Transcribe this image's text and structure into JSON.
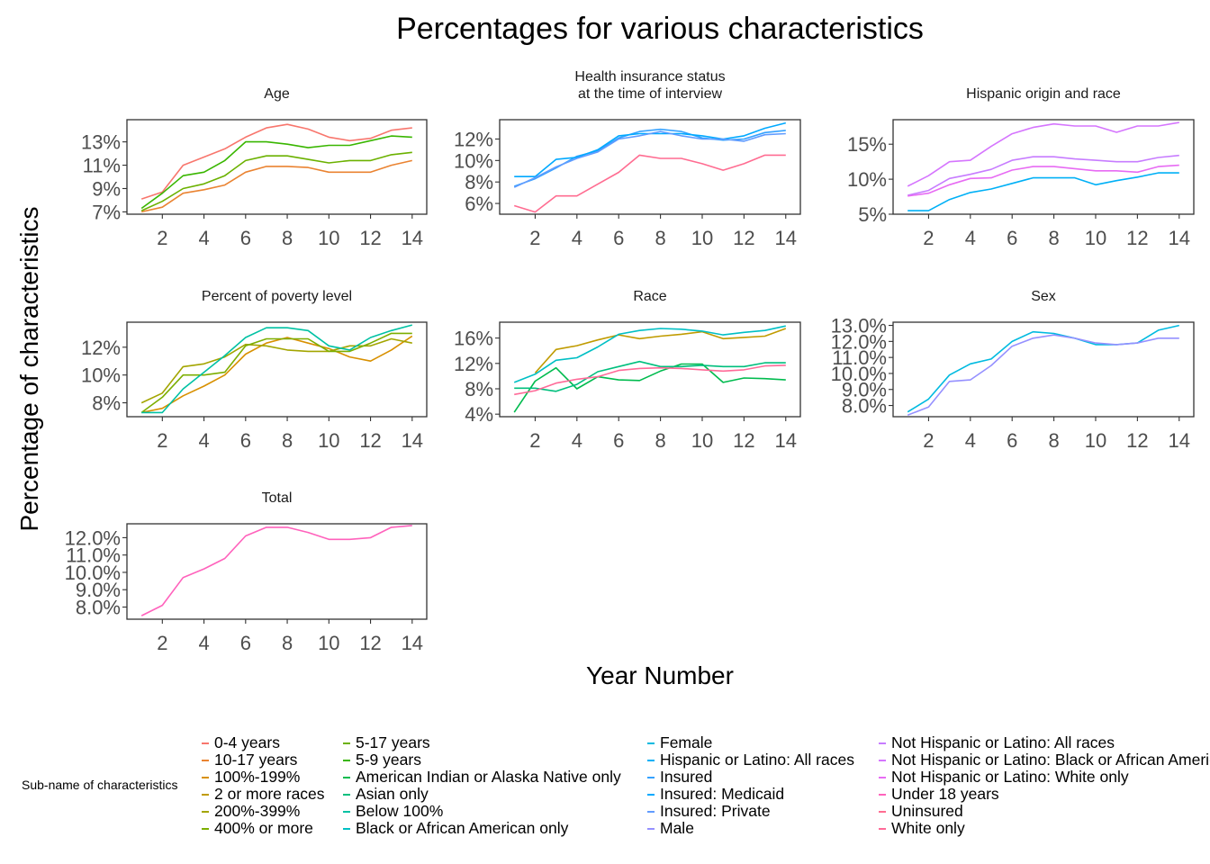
{
  "figure": {
    "title": "Percentages for various characteristics",
    "xlabel": "Year Number",
    "ylabel": "Percentage of characteristics"
  },
  "legend": {
    "title": "Sub-name of characteristics",
    "columns": [
      [
        {
          "label": "0-4 years",
          "color": "#F8766D"
        },
        {
          "label": "10-17 years",
          "color": "#EA8331"
        },
        {
          "label": "100%-199%",
          "color": "#D89000"
        },
        {
          "label": "2 or more races",
          "color": "#C09B00"
        },
        {
          "label": "200%-399%",
          "color": "#A3A500"
        },
        {
          "label": "400% or more",
          "color": "#7CAE00"
        }
      ],
      [
        {
          "label": "5-17 years",
          "color": "#6BB100"
        },
        {
          "label": "5-9 years",
          "color": "#39B600"
        },
        {
          "label": "American Indian or Alaska Native only",
          "color": "#00BB4E"
        },
        {
          "label": "Asian only",
          "color": "#00BF7D"
        },
        {
          "label": "Below 100%",
          "color": "#00C1A3"
        },
        {
          "label": "Black or African American only",
          "color": "#00BFC4"
        }
      ],
      [
        {
          "label": "Female",
          "color": "#00BAE0"
        },
        {
          "label": "Hispanic or Latino: All races",
          "color": "#00B0F6"
        },
        {
          "label": "Insured",
          "color": "#35A2FF"
        },
        {
          "label": "Insured: Medicaid",
          "color": "#00A9FF"
        },
        {
          "label": "Insured: Private",
          "color": "#619CFF"
        },
        {
          "label": "Male",
          "color": "#9590FF"
        }
      ],
      [
        {
          "label": "Not Hispanic or Latino: All races",
          "color": "#C77CFF"
        },
        {
          "label": "Not Hispanic or Latino: Black or African American only",
          "color": "#D575FE"
        },
        {
          "label": "Not Hispanic or Latino: White only",
          "color": "#E76BF3"
        },
        {
          "label": "Under 18 years",
          "color": "#FF62BC"
        },
        {
          "label": "Uninsured",
          "color": "#FF6C91"
        },
        {
          "label": "White only",
          "color": "#FF6A98"
        }
      ]
    ]
  },
  "chart_data": [
    {
      "type": "line",
      "title": "Age",
      "x": [
        1,
        2,
        3,
        4,
        5,
        6,
        7,
        8,
        9,
        10,
        11,
        12,
        13,
        14
      ],
      "xlim": [
        0.3,
        14.7
      ],
      "xticks": [
        2,
        4,
        6,
        8,
        10,
        12,
        14
      ],
      "ylim": [
        6.8,
        14.9
      ],
      "yticks": [
        7,
        9,
        11,
        13
      ],
      "ytick_labels": [
        "7%",
        "9%",
        "11%",
        "13%"
      ],
      "series": [
        {
          "name": "0-4 years",
          "color": "#F8766D",
          "values": [
            8.1,
            8.7,
            11.0,
            11.7,
            12.4,
            13.4,
            14.2,
            14.5,
            14.1,
            13.4,
            13.1,
            13.3,
            14.0,
            14.2
          ]
        },
        {
          "name": "10-17 years",
          "color": "#EA8331",
          "values": [
            7.0,
            7.4,
            8.6,
            8.9,
            9.3,
            10.4,
            10.9,
            10.9,
            10.8,
            10.4,
            10.4,
            10.4,
            11.0,
            11.4
          ]
        },
        {
          "name": "5-17 years",
          "color": "#6BB100",
          "values": [
            7.1,
            7.9,
            9.0,
            9.4,
            10.1,
            11.4,
            11.8,
            11.8,
            11.5,
            11.2,
            11.4,
            11.4,
            11.9,
            12.1
          ]
        },
        {
          "name": "5-9 years",
          "color": "#39B600",
          "values": [
            7.3,
            8.6,
            10.1,
            10.4,
            11.4,
            13.0,
            13.0,
            12.8,
            12.5,
            12.7,
            12.7,
            13.1,
            13.5,
            13.4
          ]
        }
      ]
    },
    {
      "type": "line",
      "title": "Health insurance status\nat the time of interview",
      "x": [
        1,
        2,
        3,
        4,
        5,
        6,
        7,
        8,
        9,
        10,
        11,
        12,
        13,
        14
      ],
      "xlim": [
        0.3,
        14.7
      ],
      "xticks": [
        2,
        4,
        6,
        8,
        10,
        12,
        14
      ],
      "ylim": [
        5.0,
        13.8
      ],
      "yticks": [
        6,
        8,
        10,
        12
      ],
      "ytick_labels": [
        "6%",
        "8%",
        "10%",
        "12%"
      ],
      "series": [
        {
          "name": "Uninsured",
          "color": "#FF6C91",
          "values": [
            5.8,
            5.2,
            6.7,
            6.7,
            7.8,
            8.9,
            10.5,
            10.2,
            10.2,
            9.7,
            9.1,
            9.7,
            10.5,
            10.5
          ]
        },
        {
          "name": "Insured",
          "color": "#35A2FF",
          "values": [
            7.6,
            8.3,
            9.3,
            10.4,
            10.9,
            12.1,
            12.7,
            12.9,
            12.7,
            12.1,
            11.9,
            12.0,
            12.6,
            12.8
          ]
        },
        {
          "name": "Insured: Medicaid",
          "color": "#00A9FF",
          "values": [
            8.5,
            8.5,
            10.1,
            10.3,
            11.0,
            12.3,
            12.5,
            12.5,
            12.5,
            12.3,
            12.0,
            12.3,
            13.0,
            13.5
          ]
        },
        {
          "name": "Insured: Private",
          "color": "#619CFF",
          "values": [
            7.5,
            8.4,
            9.4,
            10.2,
            10.8,
            12.0,
            12.3,
            12.7,
            12.3,
            12.0,
            12.0,
            11.8,
            12.4,
            12.5
          ]
        }
      ]
    },
    {
      "type": "line",
      "title": "Hispanic origin and race",
      "x": [
        1,
        2,
        3,
        4,
        5,
        6,
        7,
        8,
        9,
        10,
        11,
        12,
        13,
        14
      ],
      "xlim": [
        0.3,
        14.7
      ],
      "xticks": [
        2,
        4,
        6,
        8,
        10,
        12,
        14
      ],
      "ylim": [
        5.0,
        18.5
      ],
      "yticks": [
        5,
        10,
        15
      ],
      "ytick_labels": [
        "5%",
        "10%",
        "15%"
      ],
      "series": [
        {
          "name": "Hispanic or Latino: All races",
          "color": "#00B0F6",
          "values": [
            5.5,
            5.5,
            7.1,
            8.1,
            8.6,
            9.4,
            10.2,
            10.2,
            10.2,
            9.2,
            9.8,
            10.3,
            10.9,
            10.9
          ]
        },
        {
          "name": "Not Hispanic or Latino: All races",
          "color": "#C77CFF",
          "values": [
            7.7,
            8.4,
            10.1,
            10.7,
            11.4,
            12.7,
            13.2,
            13.2,
            12.9,
            12.7,
            12.5,
            12.5,
            13.1,
            13.4
          ]
        },
        {
          "name": "Not Hispanic or Latino: Black or African American only",
          "color": "#D575FE",
          "values": [
            9.0,
            10.5,
            12.5,
            12.7,
            14.7,
            16.5,
            17.4,
            17.9,
            17.6,
            17.6,
            16.7,
            17.6,
            17.6,
            18.1
          ]
        },
        {
          "name": "Not Hispanic or Latino: White only",
          "color": "#E76BF3",
          "values": [
            7.6,
            8.0,
            9.2,
            10.1,
            10.2,
            11.3,
            11.8,
            11.8,
            11.5,
            11.2,
            11.2,
            11.0,
            11.8,
            12.0
          ]
        }
      ]
    },
    {
      "type": "line",
      "title": "Percent of poverty level",
      "x": [
        1,
        2,
        3,
        4,
        5,
        6,
        7,
        8,
        9,
        10,
        11,
        12,
        13,
        14
      ],
      "xlim": [
        0.3,
        14.7
      ],
      "xticks": [
        2,
        4,
        6,
        8,
        10,
        12,
        14
      ],
      "ylim": [
        7.0,
        13.8
      ],
      "yticks": [
        8,
        10,
        12
      ],
      "ytick_labels": [
        "8%",
        "10%",
        "12%"
      ],
      "series": [
        {
          "name": "100%-199%",
          "color": "#D89000",
          "values": [
            7.3,
            7.6,
            8.5,
            9.2,
            10.0,
            11.5,
            12.3,
            12.7,
            12.3,
            11.9,
            11.3,
            11.0,
            11.8,
            12.8
          ]
        },
        {
          "name": "200%-399%",
          "color": "#A3A500",
          "values": [
            8.0,
            8.7,
            10.6,
            10.8,
            11.3,
            12.2,
            12.1,
            11.8,
            11.7,
            11.7,
            12.1,
            12.1,
            12.6,
            12.3
          ]
        },
        {
          "name": "400% or more",
          "color": "#7CAE00",
          "values": [
            7.3,
            8.4,
            10.0,
            10.0,
            10.2,
            12.1,
            12.6,
            12.6,
            12.6,
            11.7,
            11.7,
            12.3,
            13.0,
            13.0
          ]
        },
        {
          "name": "Below 100%",
          "color": "#00C1A3",
          "values": [
            7.3,
            7.3,
            9.0,
            10.2,
            11.4,
            12.7,
            13.4,
            13.4,
            13.2,
            12.1,
            11.8,
            12.7,
            13.2,
            13.6
          ]
        }
      ]
    },
    {
      "type": "line",
      "title": "Race",
      "x": [
        1,
        2,
        3,
        4,
        5,
        6,
        7,
        8,
        9,
        10,
        11,
        12,
        13,
        14
      ],
      "xlim": [
        0.3,
        14.7
      ],
      "xticks": [
        2,
        4,
        6,
        8,
        10,
        12,
        14
      ],
      "ylim": [
        3.6,
        18.5
      ],
      "yticks": [
        4,
        8,
        12,
        16
      ],
      "ytick_labels": [
        "4%",
        "8%",
        "12%",
        "16%"
      ],
      "series": [
        {
          "name": "2 or more races",
          "color": "#C09B00",
          "values": [
            null,
            10.5,
            14.2,
            14.8,
            15.7,
            16.5,
            15.9,
            16.3,
            16.6,
            17.0,
            15.9,
            16.1,
            16.3,
            17.5
          ]
        },
        {
          "name": "American Indian or Alaska Native only",
          "color": "#00BB4E",
          "values": [
            4.3,
            9.2,
            11.3,
            8.0,
            9.9,
            9.4,
            9.3,
            10.8,
            11.9,
            11.9,
            9.0,
            9.7,
            9.6,
            9.4
          ]
        },
        {
          "name": "Asian only",
          "color": "#00BF7D",
          "values": [
            8.1,
            8.1,
            7.6,
            8.7,
            10.7,
            11.5,
            12.3,
            11.5,
            11.5,
            11.7,
            11.5,
            11.5,
            12.1,
            12.1
          ]
        },
        {
          "name": "Black or African American only",
          "color": "#00BFC4",
          "values": [
            9.0,
            10.3,
            12.5,
            12.9,
            14.6,
            16.6,
            17.2,
            17.5,
            17.4,
            17.1,
            16.5,
            16.9,
            17.2,
            17.9
          ]
        },
        {
          "name": "White only",
          "color": "#FF6A98",
          "values": [
            7.1,
            7.7,
            8.9,
            9.5,
            9.9,
            10.9,
            11.2,
            11.3,
            11.2,
            11.0,
            10.8,
            11.0,
            11.6,
            11.7
          ]
        }
      ]
    },
    {
      "type": "line",
      "title": "Sex",
      "x": [
        1,
        2,
        3,
        4,
        5,
        6,
        7,
        8,
        9,
        10,
        11,
        12,
        13,
        14
      ],
      "xlim": [
        0.3,
        14.7
      ],
      "xticks": [
        2,
        4,
        6,
        8,
        10,
        12,
        14
      ],
      "ylim": [
        7.3,
        13.2
      ],
      "yticks": [
        8,
        9,
        10,
        11,
        12,
        13
      ],
      "ytick_labels": [
        "8.0%",
        "9.0%",
        "10.0%",
        "11.0%",
        "12.0%",
        "13.0%"
      ],
      "series": [
        {
          "name": "Female",
          "color": "#00BAE0",
          "values": [
            7.6,
            8.4,
            9.9,
            10.6,
            10.9,
            12.0,
            12.6,
            12.5,
            12.2,
            11.8,
            11.8,
            11.9,
            12.7,
            13.0
          ]
        },
        {
          "name": "Male",
          "color": "#9590FF",
          "values": [
            7.4,
            7.9,
            9.5,
            9.6,
            10.5,
            11.7,
            12.2,
            12.4,
            12.2,
            11.9,
            11.8,
            11.9,
            12.2,
            12.2
          ]
        }
      ]
    },
    {
      "type": "line",
      "title": "Total",
      "x": [
        1,
        2,
        3,
        4,
        5,
        6,
        7,
        8,
        9,
        10,
        11,
        12,
        13,
        14
      ],
      "xlim": [
        0.3,
        14.7
      ],
      "xticks": [
        2,
        4,
        6,
        8,
        10,
        12,
        14
      ],
      "ylim": [
        7.3,
        12.8
      ],
      "yticks": [
        8,
        9,
        10,
        11,
        12
      ],
      "ytick_labels": [
        "8.0%",
        "9.0%",
        "10.0%",
        "11.0%",
        "12.0%"
      ],
      "series": [
        {
          "name": "Under 18 years",
          "color": "#FF62BC",
          "values": [
            7.5,
            8.1,
            9.7,
            10.2,
            10.8,
            12.1,
            12.6,
            12.6,
            12.3,
            11.9,
            11.9,
            12.0,
            12.6,
            12.7
          ]
        }
      ]
    }
  ]
}
